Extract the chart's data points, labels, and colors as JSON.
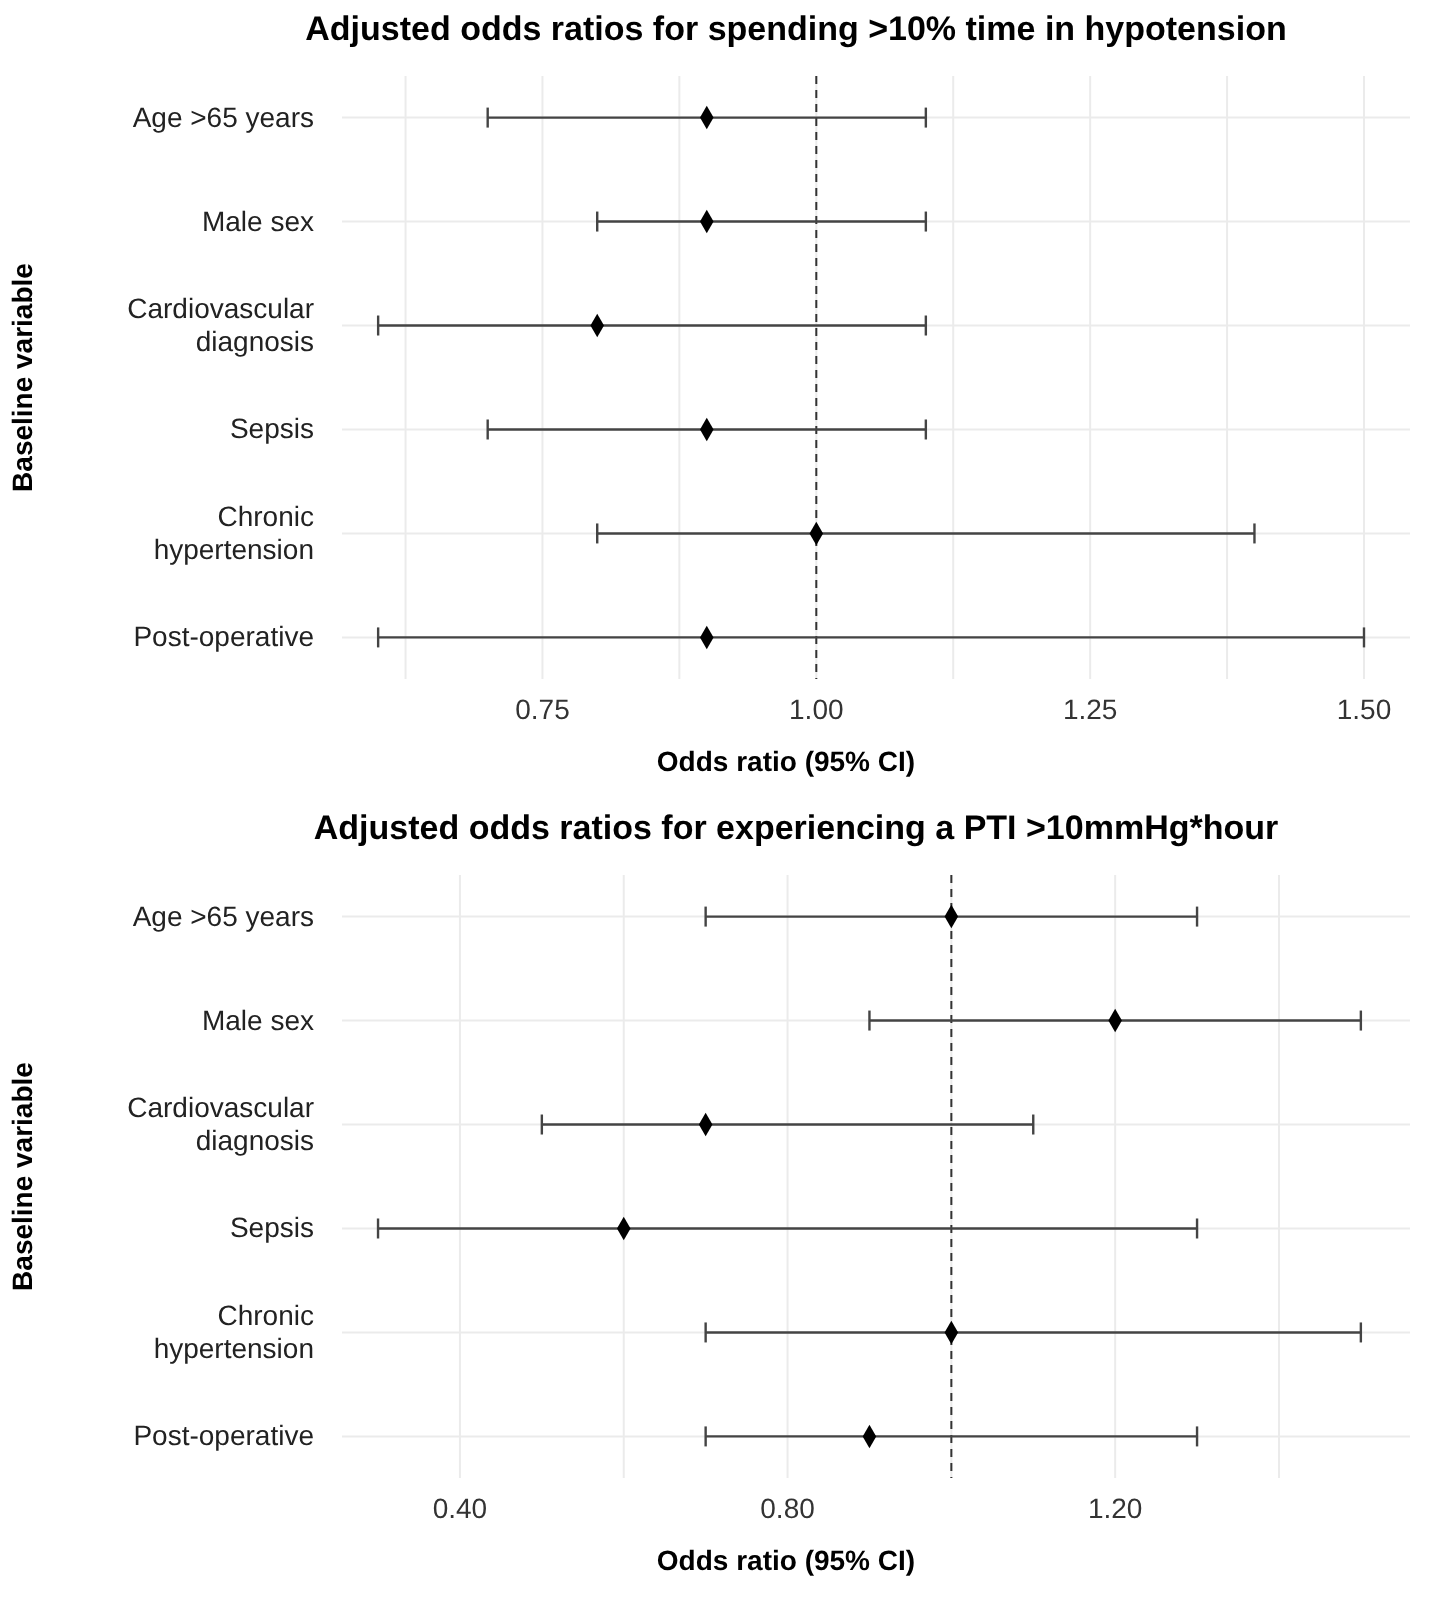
{
  "chart_data": [
    {
      "type": "scatter",
      "orientation": "horizontal",
      "title": "Adjusted odds ratios for spending >10% time in hypotension",
      "xlabel": "Odds ratio (95% CI)",
      "ylabel": "Baseline variable",
      "categories": [
        "Age >65 years",
        "Male sex",
        "Cardiovascular diagnosis",
        "Sepsis",
        "Chronic hypertension",
        "Post-operative"
      ],
      "values": [
        0.9,
        0.9,
        0.8,
        0.9,
        1.0,
        0.9
      ],
      "errors": [
        [
          0.7,
          1.1
        ],
        [
          0.8,
          1.1
        ],
        [
          0.6,
          1.1
        ],
        [
          0.7,
          1.1
        ],
        [
          0.8,
          1.4
        ],
        [
          0.6,
          1.5
        ]
      ],
      "color": "#000000",
      "marker": "diamond",
      "xlim": [
        0.567,
        1.542
      ],
      "xticks": [
        {
          "value": 0.625,
          "label": null
        },
        0.75,
        {
          "value": 0.875,
          "label": null
        },
        {
          "value": 1.0,
          "label": "1.00"
        },
        {
          "value": 1.125,
          "label": null
        },
        1.25,
        {
          "value": 1.375,
          "label": null
        },
        {
          "value": 1.5,
          "label": "1.50"
        }
      ],
      "ref_lines": [
        {
          "axis": "x",
          "value": 1,
          "line_style": "dashed",
          "color": "#333333"
        }
      ],
      "grid": true
    },
    {
      "type": "scatter",
      "orientation": "horizontal",
      "title": "Adjusted odds ratios for experiencing a PTI >10mmHg*hour",
      "xlabel": "Odds ratio (95% CI)",
      "ylabel": "Baseline variable",
      "categories": [
        "Age >65 years",
        "Male sex",
        "Cardiovascular diagnosis",
        "Sepsis",
        "Chronic hypertension",
        "Post-operative"
      ],
      "values": [
        1.0,
        1.2,
        0.7,
        0.6,
        1.0,
        0.9
      ],
      "errors": [
        [
          0.7,
          1.3
        ],
        [
          0.9,
          1.5
        ],
        [
          0.5,
          1.1
        ],
        [
          0.3,
          1.3
        ],
        [
          0.7,
          1.5
        ],
        [
          0.7,
          1.3
        ]
      ],
      "color": "#000000",
      "marker": "diamond",
      "xlim": [
        0.256,
        1.56
      ],
      "xticks": [
        {
          "value": 0.4,
          "label": "0.40"
        },
        {
          "value": 0.6,
          "label": null
        },
        {
          "value": 0.8,
          "label": "0.80"
        },
        {
          "value": 1.0,
          "label": null
        },
        {
          "value": 1.2,
          "label": "1.20"
        },
        {
          "value": 1.4,
          "label": null
        }
      ],
      "ref_lines": [
        {
          "axis": "x",
          "value": 1,
          "line_style": "dashed",
          "color": "#333333"
        }
      ],
      "grid": true
    }
  ]
}
